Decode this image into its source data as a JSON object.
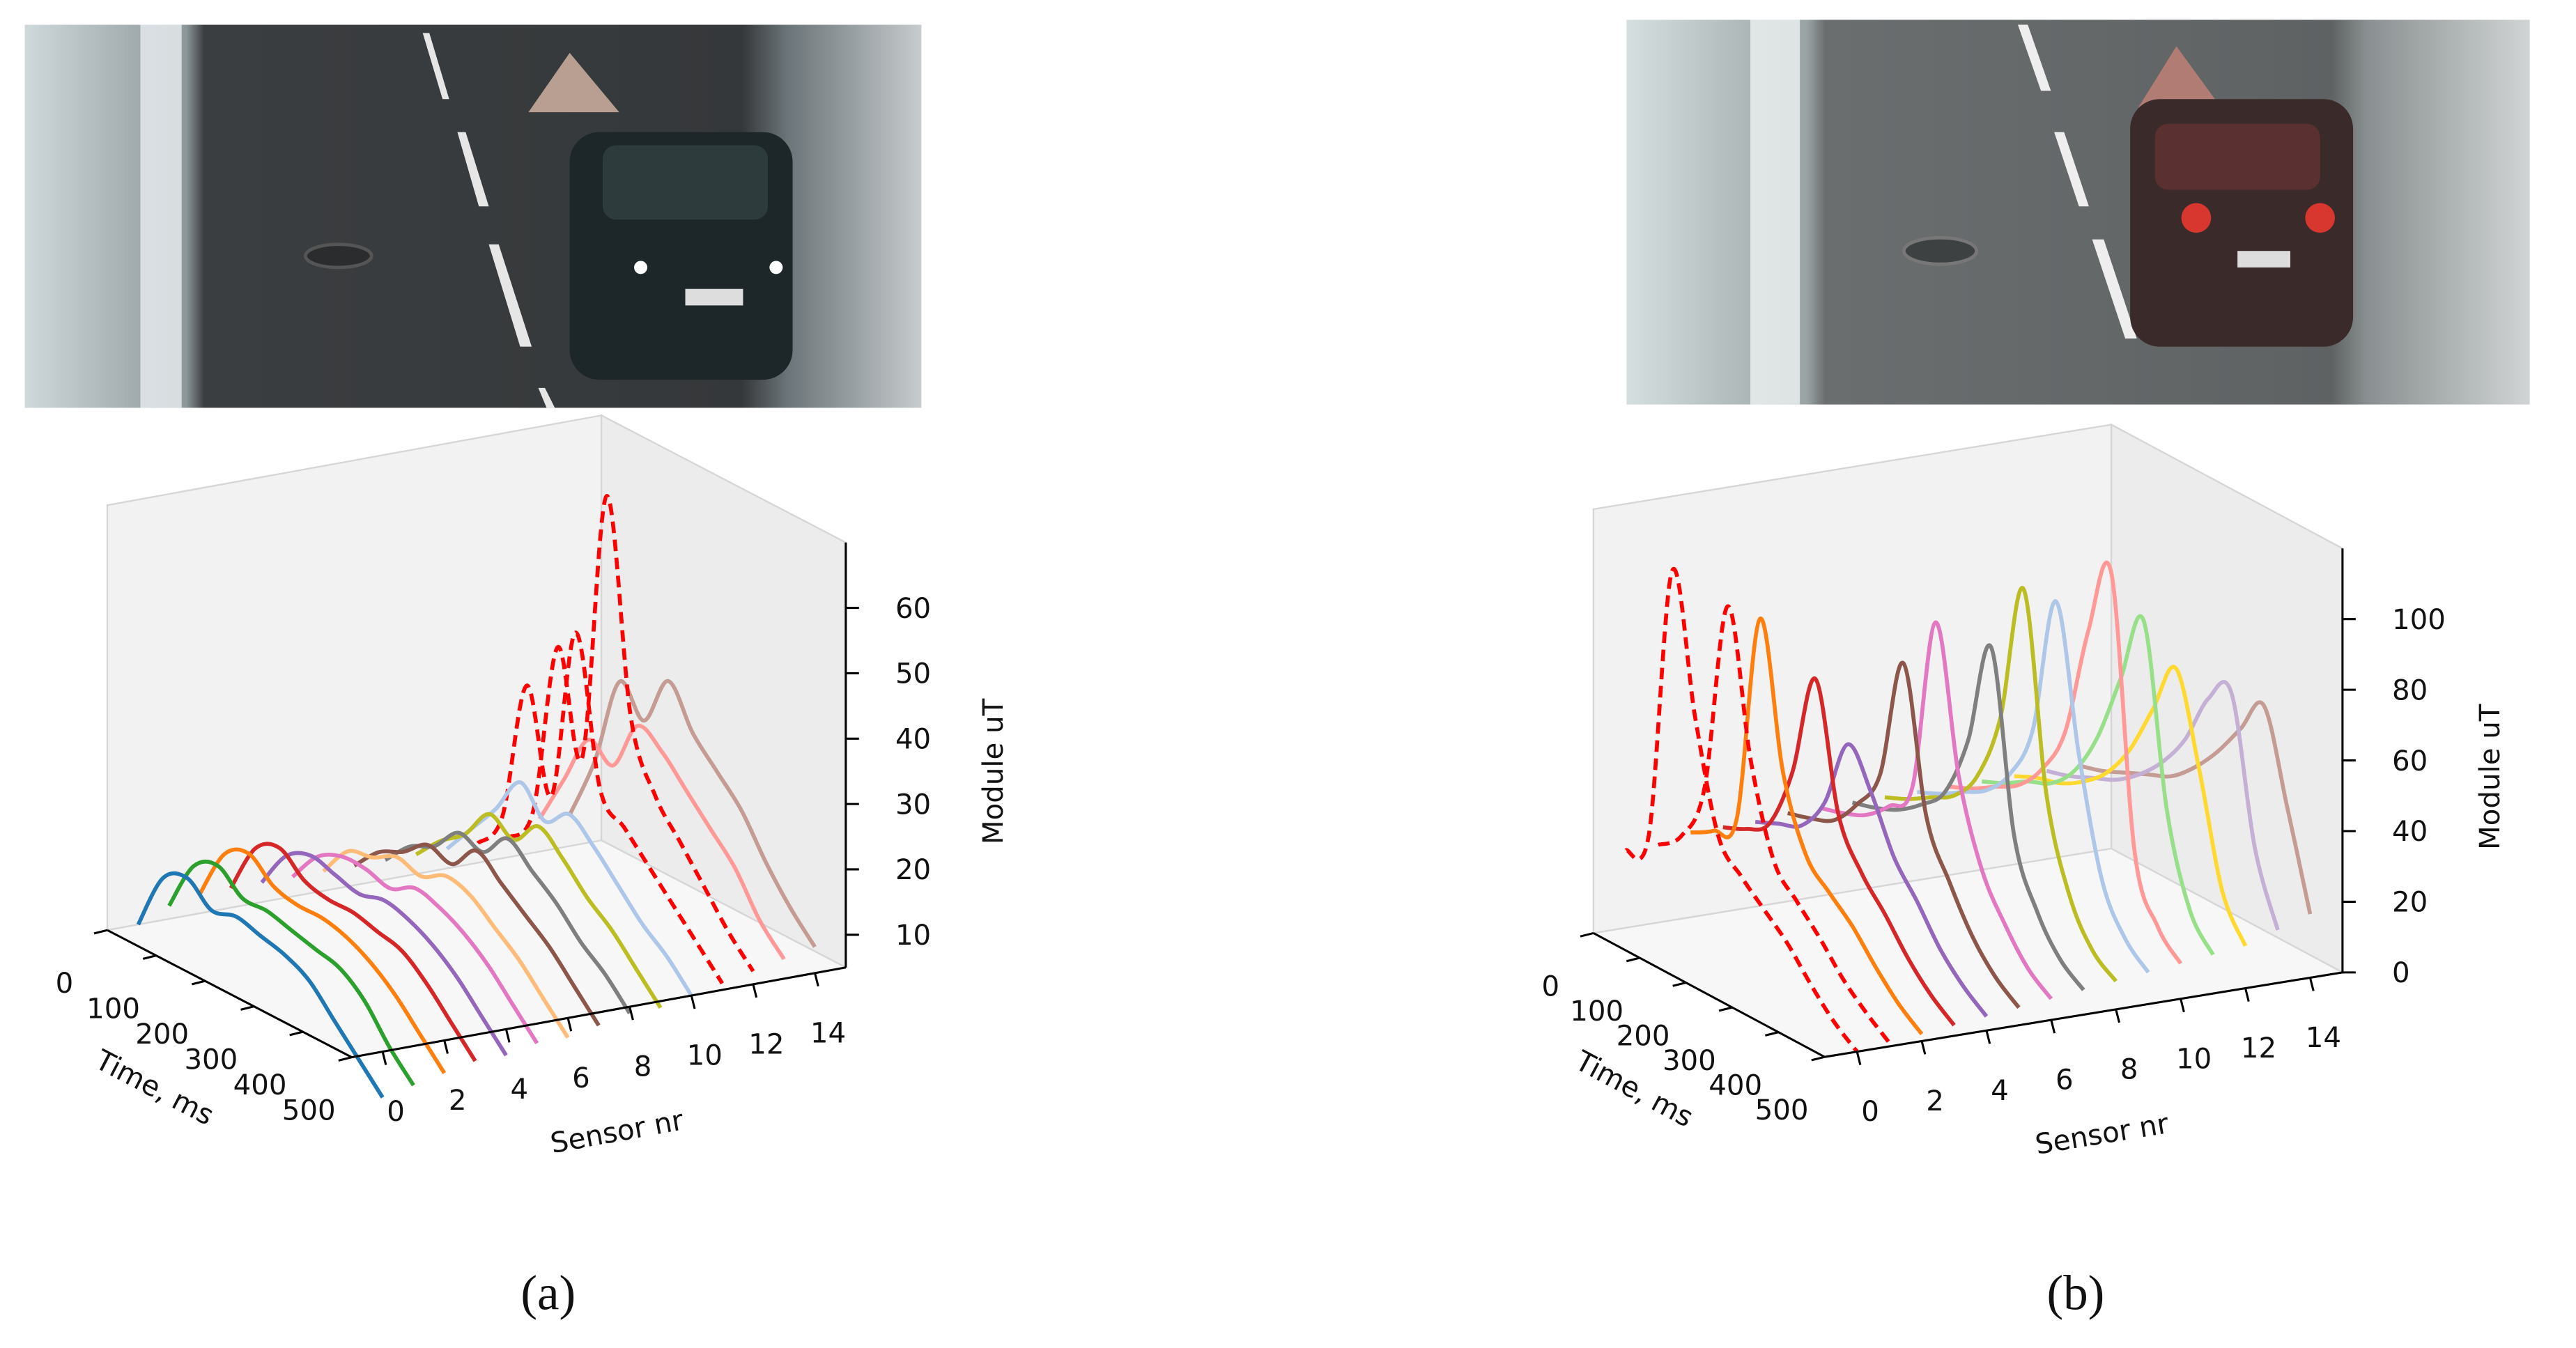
{
  "chart_data": [
    {
      "type": "waterfall3d",
      "caption": "(a)",
      "xlabel": "Time, ms",
      "ylabel": "Sensor nr",
      "zlabel": "Module uT",
      "x": [
        0,
        50,
        100,
        150,
        200,
        250,
        300,
        350,
        400,
        450,
        500
      ],
      "xlim": [
        0,
        500
      ],
      "xticks": [
        0,
        100,
        200,
        300,
        400,
        500
      ],
      "ylim": [
        -1,
        15
      ],
      "yticks": [
        0,
        2,
        4,
        6,
        8,
        10,
        12,
        14
      ],
      "zlim": [
        5,
        70
      ],
      "zticks": [
        10,
        20,
        30,
        40,
        50,
        60
      ],
      "sensors": [
        0,
        1,
        2,
        3,
        4,
        5,
        6,
        7,
        8,
        9,
        10,
        11,
        12,
        13,
        14
      ],
      "series": [
        {
          "color": "#1f77b4",
          "values": [
            5,
            14,
            16,
            13,
            14,
            13,
            12,
            10,
            6,
            2,
            -2
          ]
        },
        {
          "color": "#2ca02c",
          "values": [
            7,
            15,
            17,
            14,
            14,
            13,
            12,
            11,
            8,
            3,
            -1
          ]
        },
        {
          "color": "#ff7f0e",
          "values": [
            8,
            16,
            18,
            15,
            14,
            14,
            13,
            11,
            8,
            4,
            0
          ]
        },
        {
          "color": "#d62728",
          "values": [
            8,
            16,
            18,
            15,
            14,
            14,
            13,
            12,
            9,
            5,
            1
          ]
        },
        {
          "color": "#9467bd",
          "values": [
            8,
            14,
            16,
            15,
            14,
            15,
            14,
            12,
            9,
            5,
            1
          ]
        },
        {
          "color": "#e377c2",
          "values": [
            8,
            13,
            15,
            15,
            14,
            16,
            15,
            13,
            10,
            6,
            2
          ]
        },
        {
          "color": "#ffbb78",
          "values": [
            8,
            13,
            14,
            16,
            15,
            17,
            16,
            13,
            10,
            6,
            2
          ]
        },
        {
          "color": "#8c564b",
          "values": [
            8,
            12,
            14,
            17,
            16,
            20,
            17,
            14,
            11,
            7,
            3
          ]
        },
        {
          "color": "#7f7f7f",
          "values": [
            8,
            12,
            14,
            18,
            17,
            21,
            18,
            15,
            11,
            8,
            4
          ]
        },
        {
          "color": "#bcbd22",
          "values": [
            8,
            12,
            15,
            20,
            18,
            22,
            19,
            15,
            12,
            8,
            4
          ]
        },
        {
          "color": "#aec7e8",
          "values": [
            8,
            13,
            18,
            24,
            20,
            23,
            20,
            16,
            12,
            9,
            5
          ]
        },
        {
          "color": "#ff0000",
          "dash": true,
          "values": [
            8,
            14,
            36,
            21,
            48,
            26,
            22,
            18,
            14,
            10,
            6
          ]
        },
        {
          "color": "#ff0000",
          "dash": true,
          "values": [
            8,
            14,
            41,
            26,
            68,
            36,
            26,
            21,
            16,
            11,
            7
          ]
        },
        {
          "color": "#ff9896",
          "values": [
            10,
            18,
            26,
            24,
            32,
            30,
            26,
            22,
            18,
            12,
            8
          ]
        },
        {
          "color": "#c49c94",
          "values": [
            10,
            20,
            34,
            30,
            38,
            32,
            28,
            24,
            18,
            13,
            9
          ]
        }
      ]
    },
    {
      "type": "waterfall3d",
      "caption": "(b)",
      "xlabel": "Time, ms",
      "ylabel": "Sensor nr",
      "zlabel": "Module uT",
      "x": [
        0,
        50,
        100,
        150,
        200,
        250,
        300,
        350,
        400,
        450,
        500
      ],
      "xlim": [
        0,
        500
      ],
      "xticks": [
        0,
        100,
        200,
        300,
        400,
        500
      ],
      "ylim": [
        -1,
        15
      ],
      "yticks": [
        0,
        2,
        4,
        6,
        8,
        10,
        12,
        14
      ],
      "zlim": [
        0,
        120
      ],
      "zticks": [
        0,
        20,
        40,
        60,
        80,
        100
      ],
      "sensors": [
        0,
        1,
        2,
        3,
        4,
        5,
        6,
        7,
        8,
        9,
        10,
        11,
        12,
        13,
        14
      ],
      "series": [
        {
          "color": "#ff0000",
          "dash": true,
          "values": [
            22,
            30,
            108,
            70,
            40,
            32,
            26,
            20,
            12,
            5,
            0
          ]
        },
        {
          "color": "#ff0000",
          "dash": true,
          "values": [
            22,
            28,
            45,
            100,
            60,
            35,
            27,
            20,
            12,
            6,
            1
          ]
        },
        {
          "color": "#ff7f0e",
          "values": [
            24,
            28,
            35,
            95,
            55,
            35,
            28,
            22,
            14,
            7,
            2
          ]
        },
        {
          "color": "#d62728",
          "values": [
            24,
            27,
            32,
            50,
            80,
            45,
            32,
            24,
            15,
            8,
            3
          ]
        },
        {
          "color": "#9467bd",
          "values": [
            24,
            27,
            30,
            40,
            60,
            50,
            35,
            26,
            16,
            9,
            4
          ]
        },
        {
          "color": "#8c564b",
          "values": [
            25,
            27,
            30,
            38,
            50,
            85,
            45,
            30,
            18,
            10,
            5
          ]
        },
        {
          "color": "#e377c2",
          "values": [
            25,
            27,
            30,
            36,
            45,
            95,
            55,
            32,
            20,
            11,
            6
          ]
        },
        {
          "color": "#7f7f7f",
          "values": [
            25,
            27,
            30,
            35,
            42,
            60,
            90,
            40,
            22,
            12,
            7
          ]
        },
        {
          "color": "#bcbd22",
          "values": [
            25,
            28,
            32,
            36,
            45,
            65,
            105,
            50,
            25,
            13,
            8
          ]
        },
        {
          "color": "#aec7e8",
          "values": [
            25,
            28,
            32,
            36,
            44,
            60,
            100,
            60,
            28,
            15,
            9
          ]
        },
        {
          "color": "#ff9896",
          "values": [
            25,
            28,
            32,
            36,
            44,
            58,
            90,
            110,
            35,
            17,
            10
          ]
        },
        {
          "color": "#98df8a",
          "values": [
            25,
            28,
            32,
            35,
            42,
            55,
            75,
            95,
            45,
            20,
            11
          ]
        },
        {
          "color": "#ffd92f",
          "values": [
            25,
            28,
            30,
            34,
            40,
            50,
            65,
            80,
            55,
            24,
            12
          ]
        },
        {
          "color": "#c5b0d5",
          "values": [
            25,
            27,
            30,
            33,
            38,
            45,
            55,
            70,
            75,
            35,
            15
          ]
        },
        {
          "color": "#c49c94",
          "values": [
            25,
            27,
            30,
            33,
            36,
            42,
            50,
            60,
            70,
            45,
            18
          ]
        }
      ]
    }
  ]
}
